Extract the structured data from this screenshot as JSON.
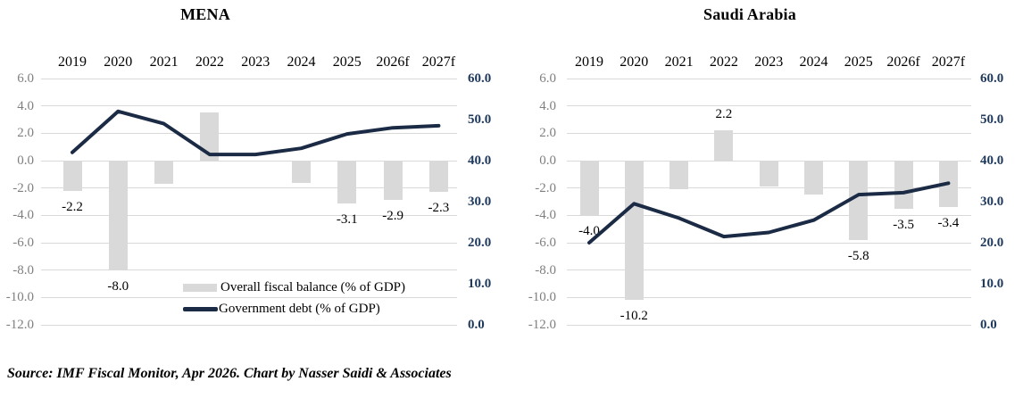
{
  "footer": {
    "source_text": "Source: IMF Fiscal Monitor, Apr 2026. Chart by Nasser Saidi & Associates"
  },
  "legend": {
    "bar_label": "Overall fiscal balance (% of GDP)",
    "line_label": "Government debt (% of GDP)"
  },
  "colors": {
    "bar": "#d9d9d9",
    "line": "#1b2b45",
    "gridline": "#d9d9d9",
    "left_axis_text": "#7f7f7f",
    "right_axis_text": "#203a5e",
    "text": "#000000"
  },
  "chart_data": [
    {
      "type": "bar",
      "title": "MENA",
      "categories": [
        "2019",
        "2020",
        "2021",
        "2022",
        "2023",
        "2024",
        "2025",
        "2026f",
        "2027f"
      ],
      "series": [
        {
          "name": "Overall fiscal balance (% of GDP)",
          "render": "bar",
          "axis": "left",
          "values": [
            -2.2,
            -8.0,
            -1.7,
            3.5,
            0.0,
            -1.6,
            -3.1,
            -2.9,
            -2.3
          ],
          "data_labels": [
            "-2.2",
            "-8.0",
            null,
            null,
            null,
            null,
            "-3.1",
            "-2.9",
            "-2.3"
          ]
        },
        {
          "name": "Government debt (% of GDP)",
          "render": "line",
          "axis": "right",
          "values": [
            42,
            52,
            49,
            41.5,
            41.5,
            43,
            46.5,
            48,
            48.5
          ]
        }
      ],
      "left_axis": {
        "min": -12,
        "max": 6,
        "ticks": [
          "6.0",
          "4.0",
          "2.0",
          "0.0",
          "-2.0",
          "-4.0",
          "-6.0",
          "-8.0",
          "-10.0",
          "-12.0"
        ]
      },
      "right_axis": {
        "min": 0,
        "max": 60,
        "ticks": [
          "60.0",
          "50.0",
          "40.0",
          "30.0",
          "20.0",
          "10.0",
          "0.0"
        ]
      },
      "x_axis_position": "top",
      "grid": true,
      "legend_position": "inside-bottom"
    },
    {
      "type": "bar",
      "title": "Saudi Arabia",
      "categories": [
        "2019",
        "2020",
        "2021",
        "2022",
        "2023",
        "2024",
        "2025",
        "2026f",
        "2027f"
      ],
      "series": [
        {
          "name": "Overall fiscal balance (% of GDP)",
          "render": "bar",
          "axis": "left",
          "values": [
            -4.0,
            -10.2,
            -2.1,
            2.2,
            -1.9,
            -2.5,
            -5.8,
            -3.5,
            -3.4
          ],
          "data_labels": [
            "-4.0",
            "-10.2",
            null,
            "2.2",
            null,
            null,
            "-5.8",
            "-3.5",
            "-3.4"
          ]
        },
        {
          "name": "Government debt (% of GDP)",
          "render": "line",
          "axis": "right",
          "values": [
            20,
            29.5,
            26,
            21.5,
            22.5,
            25.5,
            31.7,
            32.2,
            34.5
          ]
        }
      ],
      "left_axis": {
        "min": -12,
        "max": 6,
        "ticks": [
          "6.0",
          "4.0",
          "2.0",
          "0.0",
          "-2.0",
          "-4.0",
          "-6.0",
          "-8.0",
          "-10.0",
          "-12.0"
        ]
      },
      "right_axis": {
        "min": 0,
        "max": 60,
        "ticks": [
          "60.0",
          "50.0",
          "40.0",
          "30.0",
          "20.0",
          "10.0",
          "0.0"
        ]
      },
      "x_axis_position": "top",
      "grid": true,
      "legend_position": "none"
    }
  ]
}
